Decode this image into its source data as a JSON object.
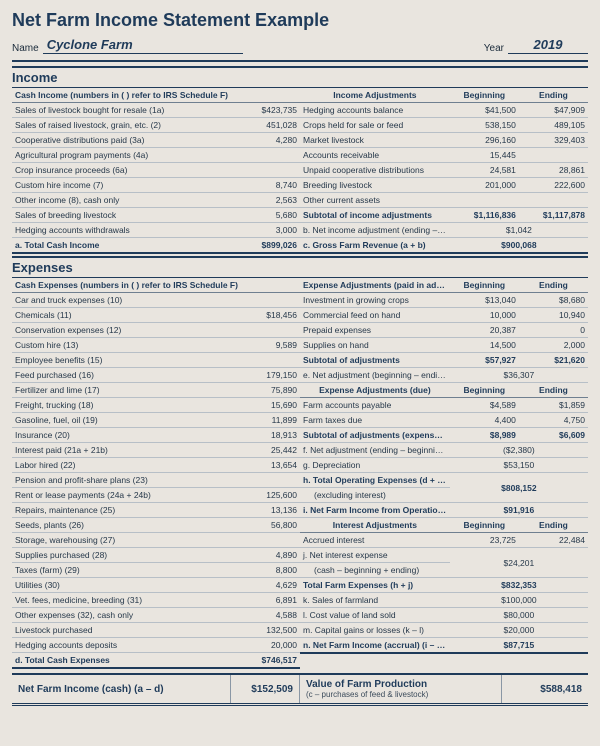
{
  "title": "Net Farm Income Statement Example",
  "meta": {
    "nameLabel": "Name",
    "name": "Cyclone Farm",
    "yearLabel": "Year",
    "year": "2019"
  },
  "income": {
    "heading": "Income",
    "cashHeader": "Cash Income (numbers in ( ) refer to IRS Schedule F)",
    "adjHeader": "Income Adjustments",
    "begLabel": "Beginning",
    "endLabel": "Ending",
    "cashRows": [
      {
        "label": "Sales of livestock bought for resale (1a)",
        "val": "$423,735"
      },
      {
        "label": "Sales of raised livestock, grain, etc. (2)",
        "val": "451,028"
      },
      {
        "label": "Cooperative distributions paid (3a)",
        "val": "4,280"
      },
      {
        "label": "Agricultural program payments (4a)",
        "val": ""
      },
      {
        "label": "Crop insurance proceeds (6a)",
        "val": ""
      },
      {
        "label": "Custom hire income (7)",
        "val": "8,740"
      },
      {
        "label": "Other income (8), cash only",
        "val": "2,563"
      },
      {
        "label": "Sales of breeding livestock",
        "val": "5,680"
      },
      {
        "label": "Hedging accounts withdrawals",
        "val": "3,000"
      }
    ],
    "cashTotal": {
      "label": "a. Total Cash Income",
      "val": "$899,026"
    },
    "adjRows": [
      {
        "label": "Hedging accounts balance",
        "beg": "$41,500",
        "end": "$47,909"
      },
      {
        "label": "Crops held for sale or feed",
        "beg": "538,150",
        "end": "489,105"
      },
      {
        "label": "Market livestock",
        "beg": "296,160",
        "end": "329,403"
      },
      {
        "label": "Accounts receivable",
        "beg": "15,445",
        "end": ""
      },
      {
        "label": "Unpaid cooperative distributions",
        "beg": "24,581",
        "end": "28,861"
      },
      {
        "label": "Breeding livestock",
        "beg": "201,000",
        "end": "222,600"
      },
      {
        "label": "Other current assets",
        "beg": "",
        "end": ""
      }
    ],
    "subtotal": {
      "label": "Subtotal of income adjustments",
      "beg": "$1,116,836",
      "end": "$1,117,878"
    },
    "netAdj": {
      "label": "b. Net income adjustment (ending – beginning)",
      "val": "$1,042"
    },
    "gross": {
      "label": "c. Gross Farm Revenue (a + b)",
      "val": "$900,068"
    }
  },
  "expenses": {
    "heading": "Expenses",
    "cashHeader": "Cash Expenses (numbers in ( ) refer to IRS Schedule F)",
    "cashRows": [
      {
        "label": "Car and truck expenses (10)",
        "val": ""
      },
      {
        "label": "Chemicals (11)",
        "val": "$18,456"
      },
      {
        "label": "Conservation expenses (12)",
        "val": ""
      },
      {
        "label": "Custom hire (13)",
        "val": "9,589"
      },
      {
        "label": "Employee benefits (15)",
        "val": ""
      },
      {
        "label": "Feed purchased (16)",
        "val": "179,150"
      },
      {
        "label": "Fertilizer and lime (17)",
        "val": "75,890"
      },
      {
        "label": "Freight, trucking (18)",
        "val": "15,690"
      },
      {
        "label": "Gasoline, fuel, oil (19)",
        "val": "11,899"
      },
      {
        "label": "Insurance (20)",
        "val": "18,913"
      },
      {
        "label": "Interest paid (21a + 21b)",
        "val": "25,442"
      },
      {
        "label": "Labor hired (22)",
        "val": "13,654"
      },
      {
        "label": "Pension and profit-share plans (23)",
        "val": ""
      },
      {
        "label": "Rent or lease payments (24a + 24b)",
        "val": "125,600"
      },
      {
        "label": "Repairs, maintenance (25)",
        "val": "13,136"
      },
      {
        "label": "Seeds, plants (26)",
        "val": "56,800"
      },
      {
        "label": "Storage, warehousing (27)",
        "val": ""
      },
      {
        "label": "Supplies purchased (28)",
        "val": "4,890"
      },
      {
        "label": "Taxes (farm) (29)",
        "val": "8,800"
      },
      {
        "label": "Utilities (30)",
        "val": "4,629"
      },
      {
        "label": "Vet. fees, medicine, breeding (31)",
        "val": "6,891"
      },
      {
        "label": "Other expenses (32), cash only",
        "val": "4,588"
      },
      {
        "label": "Livestock purchased",
        "val": "132,500"
      },
      {
        "label": "Hedging accounts deposits",
        "val": "20,000"
      }
    ],
    "cashTotal": {
      "label": "d. Total Cash Expenses",
      "val": "$746,517"
    },
    "adjAdvHeader": "Expense Adjustments (paid in advance)",
    "begLabel": "Beginning",
    "endLabel": "Ending",
    "advRows": [
      {
        "label": "Investment in growing crops",
        "beg": "$13,040",
        "end": "$8,680"
      },
      {
        "label": "Commercial feed on hand",
        "beg": "10,000",
        "end": "10,940"
      },
      {
        "label": "Prepaid expenses",
        "beg": "20,387",
        "end": "0"
      },
      {
        "label": "Supplies on hand",
        "beg": "14,500",
        "end": "2,000"
      }
    ],
    "advSubtotal": {
      "label": "Subtotal of adjustments",
      "beg": "$57,927",
      "end": "$21,620"
    },
    "advNet": {
      "label": "e. Net adjustment (beginning – ending)",
      "val": "$36,307"
    },
    "adjDueHeader": "Expense Adjustments (due)",
    "dueRows": [
      {
        "label": "Farm accounts payable",
        "beg": "$4,589",
        "end": "$1,859"
      },
      {
        "label": "Farm taxes due",
        "beg": "4,400",
        "end": "4,750"
      }
    ],
    "dueSubtotal": {
      "label": "Subtotal of adjustments (expenses due)",
      "beg": "$8,989",
      "end": "$6,609"
    },
    "dueNet": {
      "label": "f. Net adjustment (ending – beginning)",
      "val": "($2,380)"
    },
    "dep": {
      "label": "g. Depreciation",
      "val": "$53,150"
    },
    "totOp": {
      "label": "h. Total Operating Expenses (d + e + f + g)",
      "sub": "(excluding interest)",
      "val": "$808,152"
    },
    "netOps": {
      "label": "i. Net Farm Income from Operations (c – h)",
      "val": "$91,916"
    },
    "intHeader": "Interest Adjustments",
    "intRow": {
      "label": "Accrued interest",
      "beg": "23,725",
      "end": "22,484"
    },
    "intNet": {
      "label": "j. Net interest expense",
      "sub": "(cash – beginning + ending)",
      "val": "$24,201"
    },
    "totFarmExp": {
      "label": "Total Farm Expenses (h + j)",
      "val": "$832,353"
    },
    "kRow": {
      "label": "k. Sales of farmland",
      "val": "$100,000"
    },
    "lRow": {
      "label": "l. Cost value of land sold",
      "val": "$80,000"
    },
    "mRow": {
      "label": "m. Capital gains or losses (k – l)",
      "val": "$20,000"
    },
    "nRow": {
      "label": "n. Net Farm Income (accrual) (i – j + m)",
      "val": "$87,715"
    }
  },
  "footer": {
    "left": "Net Farm Income (cash) (a – d)",
    "leftVal": "$152,509",
    "right": "Value of Farm Production",
    "rightSub": "(c – purchases of feed & livestock)",
    "rightVal": "$588,418"
  }
}
